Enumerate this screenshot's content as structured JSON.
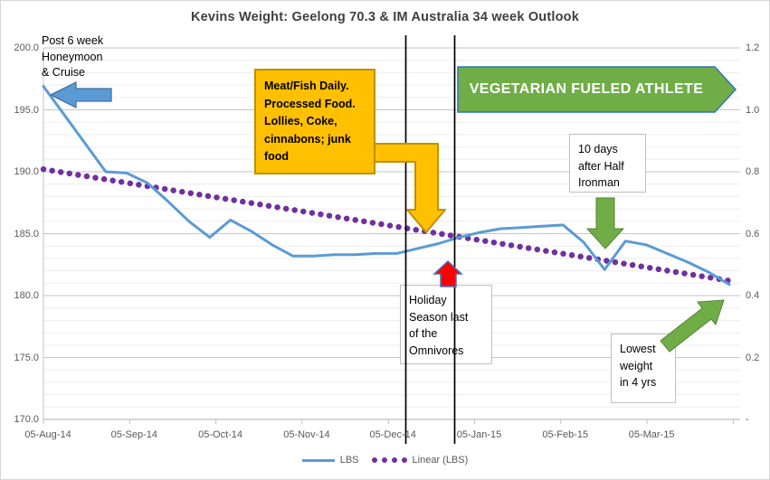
{
  "title": "Kevins Weight: Geelong 70.3 & IM Australia 34 week Outlook",
  "chart_data": {
    "type": "line",
    "title": "Kevins Weight: Geelong 70.3 & IM Australia 34 week Outlook",
    "x_description": "weekly samples, week 0 = 05-Aug-14 through week 33 (~34 week outlook)",
    "x_tick_labels": [
      "05-Aug-14",
      "05-Sep-14",
      "05-Oct-14",
      "05-Nov-14",
      "05-Dec-14",
      "05-Jan-15",
      "05-Feb-15",
      "05-Mar-15"
    ],
    "left_axis": {
      "tick_labels": [
        "200.0",
        "195.0",
        "190.0",
        "185.0",
        "180.0",
        "175.0",
        "170.0"
      ],
      "min": 170,
      "max": 200,
      "major_step": 5,
      "minor_step": 1
    },
    "right_axis": {
      "tick_labels": [
        "1.2",
        "1.0",
        "0.8",
        "0.6",
        "0.4",
        "0.2",
        "-"
      ],
      "min": 0,
      "max": 1.2,
      "major_step": 0.2
    },
    "grid": "horizontal major + minor",
    "legend_position": "bottom-center",
    "series": [
      {
        "name": "LBS",
        "type": "line",
        "values": [
          196.9,
          194.6,
          192.3,
          190.0,
          189.9,
          189.1,
          187.6,
          186.0,
          184.7,
          186.1,
          185.2,
          184.1,
          183.2,
          183.2,
          183.3,
          183.3,
          183.4,
          183.4,
          183.8,
          184.2,
          184.7,
          185.1,
          185.4,
          185.5,
          185.6,
          185.7,
          184.3,
          182.1,
          184.4,
          184.1,
          183.4,
          182.7,
          181.9,
          180.9
        ]
      },
      {
        "name": "Linear (LBS)",
        "type": "linear-trendline",
        "style": "dotted",
        "start_value": 190.2,
        "end_value": 181.2
      }
    ],
    "date_marker_lines_week_x": [
      447,
      501
    ]
  },
  "legend": {
    "lbs_label": "LBS",
    "trend_label": "Linear (LBS)"
  },
  "annotations": {
    "honeymoon": {
      "text": "Post 6 week\nHoneymoon\n& Cruise"
    },
    "meat": {
      "text": "Meat/Fish Daily.\nProcessed Food.\nLollies, Coke,\ncinnabons; junk\nfood"
    },
    "banner": {
      "text": "VEGETARIAN FUELED ATHLETE"
    },
    "ironman": {
      "text": "10 days\nafter Half\nIronman"
    },
    "holiday": {
      "text": "Holiday\nSeason last\nof the\nOmnivores"
    },
    "lowest": {
      "text": "Lowest\nweight\nin 4 yrs"
    }
  },
  "colors": {
    "series_blue": "#5B9BD5",
    "trend_purple": "#7030A0",
    "orange_fill": "#FFC000",
    "orange_border": "#BF9000",
    "green_fill": "#70AD47",
    "green_border": "#548235",
    "banner_border": "#2E75B6",
    "red_fill": "#FF0000",
    "red_border": "#4472C4",
    "blue_arrow_fill": "#5B9BD5",
    "blue_arrow_border": "#41719C",
    "box_border": "#BFBFBF",
    "grid_major": "#C6C6C6",
    "grid_minor": "#EDEDED",
    "axis_line": "#BFBFBF",
    "axis_text": "#595959",
    "title_text": "#3F3F3F",
    "marker_line": "#000000"
  }
}
